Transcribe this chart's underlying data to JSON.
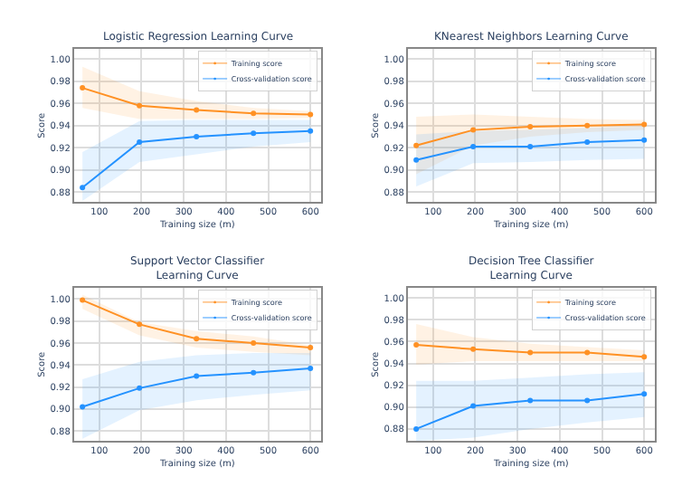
{
  "chart_data": [
    {
      "type": "line",
      "title": "Logistic Regression Learning Curve",
      "xlabel": "Training size (m)",
      "ylabel": "Score",
      "x": [
        60,
        195,
        330,
        465,
        600
      ],
      "xlim": [
        40,
        625
      ],
      "xticks": [
        100,
        200,
        300,
        400,
        500,
        600
      ],
      "ylim": [
        0.871,
        1.009
      ],
      "yticks": [
        {
          "value": 0.88,
          "label": "0.88"
        },
        {
          "value": 0.9,
          "label": "0.90"
        },
        {
          "value": 0.92,
          "label": "0.92"
        },
        {
          "value": 0.94,
          "label": "0.94"
        },
        {
          "value": 0.96,
          "label": "0.96"
        },
        {
          "value": 0.98,
          "label": "0.98"
        },
        {
          "value": 1.0,
          "label": "1.00"
        }
      ],
      "grid": true,
      "legend": "top right",
      "marker": "circle",
      "series": [
        {
          "name": "Training score",
          "color": "#ff9124",
          "values": [
            0.974,
            0.958,
            0.954,
            0.951,
            0.95
          ],
          "lower": [
            0.956,
            0.946,
            0.946,
            0.946,
            0.947
          ],
          "upper": [
            0.993,
            0.971,
            0.962,
            0.956,
            0.953
          ]
        },
        {
          "name": "Cross-validation score",
          "color": "#2492ff",
          "values": [
            0.884,
            0.925,
            0.93,
            0.933,
            0.935
          ],
          "lower": [
            0.872,
            0.907,
            0.914,
            0.921,
            0.925
          ],
          "upper": [
            0.916,
            0.944,
            0.945,
            0.945,
            0.945
          ]
        }
      ]
    },
    {
      "type": "line",
      "title": "KNearest Neighbors Learning Curve",
      "xlabel": "Training size (m)",
      "ylabel": "Score",
      "x": [
        60,
        195,
        330,
        465,
        600
      ],
      "xlim": [
        40,
        625
      ],
      "xticks": [
        100,
        200,
        300,
        400,
        500,
        600
      ],
      "ylim": [
        0.871,
        1.009
      ],
      "yticks": [
        {
          "value": 0.88,
          "label": "0.88"
        },
        {
          "value": 0.9,
          "label": "0.90"
        },
        {
          "value": 0.92,
          "label": "0.92"
        },
        {
          "value": 0.94,
          "label": "0.94"
        },
        {
          "value": 0.96,
          "label": "0.96"
        },
        {
          "value": 0.98,
          "label": "0.98"
        },
        {
          "value": 1.0,
          "label": "1.00"
        }
      ],
      "grid": true,
      "legend": "top right",
      "marker": "circle",
      "series": [
        {
          "name": "Training score",
          "color": "#ff9124",
          "values": [
            0.922,
            0.936,
            0.939,
            0.94,
            0.941
          ],
          "lower": [
            0.896,
            0.922,
            0.93,
            0.934,
            0.936
          ],
          "upper": [
            0.948,
            0.95,
            0.948,
            0.946,
            0.945
          ]
        },
        {
          "name": "Cross-validation score",
          "color": "#2492ff",
          "values": [
            0.909,
            0.921,
            0.921,
            0.925,
            0.927
          ],
          "lower": [
            0.885,
            0.906,
            0.907,
            0.909,
            0.91
          ],
          "upper": [
            0.932,
            0.935,
            0.936,
            0.938,
            0.939
          ]
        }
      ]
    },
    {
      "type": "line",
      "title": "Support Vector Classifier\nLearning Curve",
      "xlabel": "Training size (m)",
      "ylabel": "Score",
      "x": [
        60,
        195,
        330,
        465,
        600
      ],
      "xlim": [
        40,
        625
      ],
      "xticks": [
        100,
        200,
        300,
        400,
        500,
        600
      ],
      "ylim": [
        0.871,
        1.01
      ],
      "yticks": [
        {
          "value": 0.88,
          "label": "0.88"
        },
        {
          "value": 0.9,
          "label": "0.90"
        },
        {
          "value": 0.92,
          "label": "0.92"
        },
        {
          "value": 0.94,
          "label": "0.94"
        },
        {
          "value": 0.96,
          "label": "0.96"
        },
        {
          "value": 0.98,
          "label": "0.98"
        },
        {
          "value": 1.0,
          "label": "1.00"
        }
      ],
      "grid": true,
      "legend": "top right",
      "marker": "circle",
      "series": [
        {
          "name": "Training score",
          "color": "#ff9124",
          "values": [
            0.999,
            0.977,
            0.964,
            0.96,
            0.956
          ],
          "lower": [
            0.991,
            0.967,
            0.956,
            0.952,
            0.949
          ],
          "upper": [
            1.004,
            0.979,
            0.971,
            0.966,
            0.958
          ]
        },
        {
          "name": "Cross-validation score",
          "color": "#2492ff",
          "values": [
            0.902,
            0.919,
            0.93,
            0.933,
            0.937
          ],
          "lower": [
            0.873,
            0.899,
            0.908,
            0.913,
            0.917
          ],
          "upper": [
            0.927,
            0.943,
            0.949,
            0.951,
            0.951
          ]
        }
      ]
    },
    {
      "type": "line",
      "title": "Decision Tree Classifier\nLearning Curve",
      "xlabel": "Training size (m)",
      "ylabel": "Score",
      "x": [
        60,
        195,
        330,
        465,
        600
      ],
      "xlim": [
        40,
        625
      ],
      "xticks": [
        100,
        200,
        300,
        400,
        500,
        600
      ],
      "ylim": [
        0.869,
        1.009
      ],
      "yticks": [
        {
          "value": 0.88,
          "label": "0.88"
        },
        {
          "value": 0.9,
          "label": "0.90"
        },
        {
          "value": 0.92,
          "label": "0.92"
        },
        {
          "value": 0.94,
          "label": "0.94"
        },
        {
          "value": 0.96,
          "label": "0.96"
        },
        {
          "value": 0.98,
          "label": "0.98"
        },
        {
          "value": 1.0,
          "label": "1.00"
        }
      ],
      "grid": true,
      "legend": "top right",
      "marker": "circle",
      "series": [
        {
          "name": "Training score",
          "color": "#ff9124",
          "values": [
            0.957,
            0.953,
            0.95,
            0.95,
            0.946
          ],
          "lower": [
            0.939,
            0.942,
            0.942,
            0.942,
            0.942
          ],
          "upper": [
            0.976,
            0.964,
            0.958,
            0.955,
            0.952
          ]
        },
        {
          "name": "Cross-validation score",
          "color": "#2492ff",
          "values": [
            0.88,
            0.901,
            0.906,
            0.906,
            0.912
          ],
          "lower": [
            0.869,
            0.872,
            0.88,
            0.886,
            0.891
          ],
          "upper": [
            0.924,
            0.924,
            0.927,
            0.93,
            0.932
          ]
        }
      ]
    }
  ]
}
